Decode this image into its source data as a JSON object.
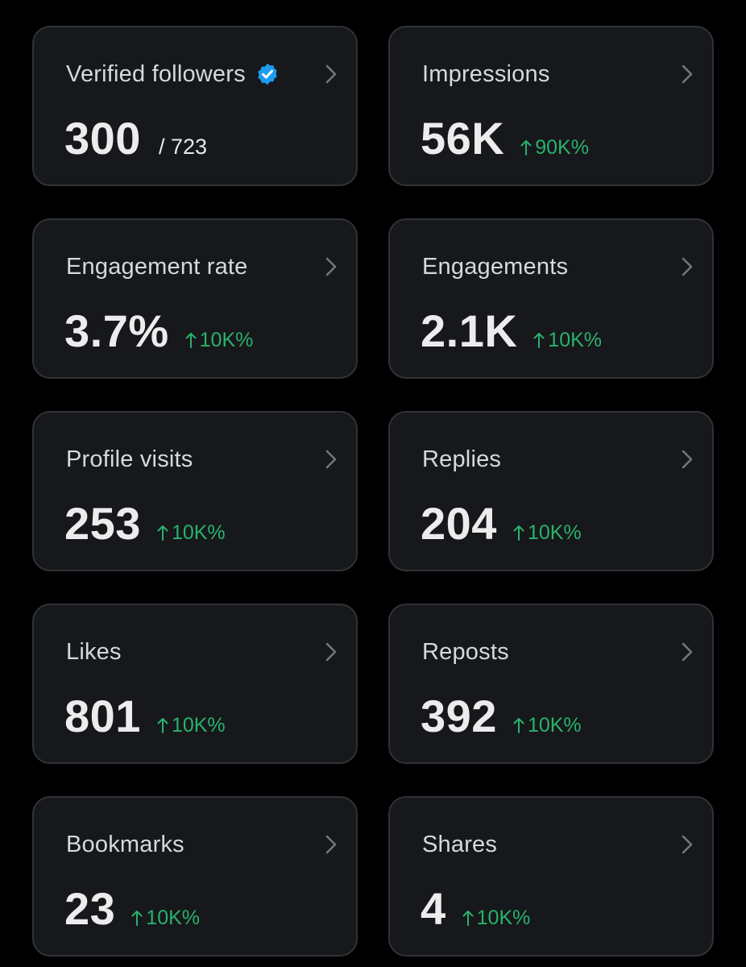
{
  "theme": {
    "background": "#000000",
    "card_background": "#16181c",
    "card_border": "#2f3336",
    "positive_color": "#29b26b",
    "verified_color": "#1d9bf0"
  },
  "cards": [
    {
      "label": "Verified followers",
      "value": "300",
      "sub": "/ 723",
      "icon": "verified-badge-icon"
    },
    {
      "label": "Impressions",
      "value": "56K",
      "change": "90K%"
    },
    {
      "label": "Engagement rate",
      "value": "3.7%",
      "change": "10K%"
    },
    {
      "label": "Engagements",
      "value": "2.1K",
      "change": "10K%"
    },
    {
      "label": "Profile visits",
      "value": "253",
      "change": "10K%"
    },
    {
      "label": "Replies",
      "value": "204",
      "change": "10K%"
    },
    {
      "label": "Likes",
      "value": "801",
      "change": "10K%"
    },
    {
      "label": "Reposts",
      "value": "392",
      "change": "10K%"
    },
    {
      "label": "Bookmarks",
      "value": "23",
      "change": "10K%"
    },
    {
      "label": "Shares",
      "value": "4",
      "change": "10K%"
    }
  ]
}
